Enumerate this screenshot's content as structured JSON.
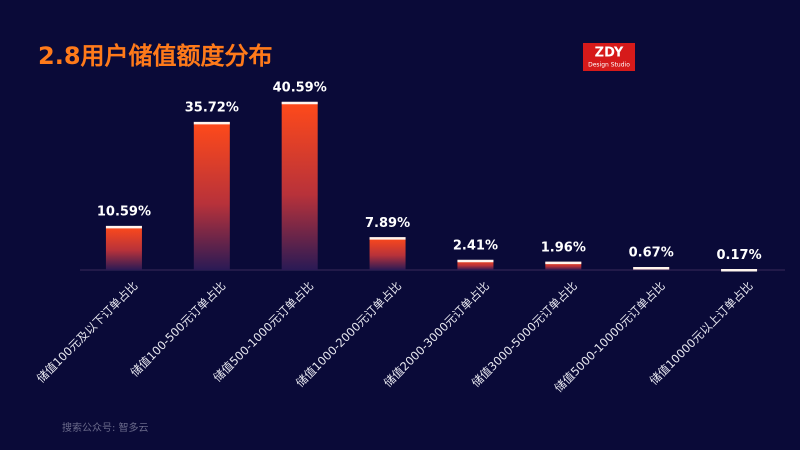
{
  "chart_data": {
    "type": "bar",
    "title": "2.8用户储值额度分布",
    "categories": [
      "储值100元及以下订单占比",
      "储值100-500元订单占比",
      "储值500-1000元订单占比",
      "储值1000-2000元订单占比",
      "储值2000-3000元订单占比",
      "储值3000-5000元订单占比",
      "储值5000-10000元订单占比",
      "储值10000元以上订单占比"
    ],
    "values": [
      10.59,
      35.72,
      40.59,
      7.89,
      2.41,
      1.96,
      0.67,
      0.17
    ],
    "value_labels": [
      "10.59%",
      "35.72%",
      "40.59%",
      "7.89%",
      "2.41%",
      "1.96%",
      "0.67%",
      "0.17%"
    ],
    "color": "#ff4a1a"
  },
  "logo": {
    "text": "ZDY",
    "subtext": "Design Studio"
  },
  "footer": "搜索公众号:  智多云"
}
